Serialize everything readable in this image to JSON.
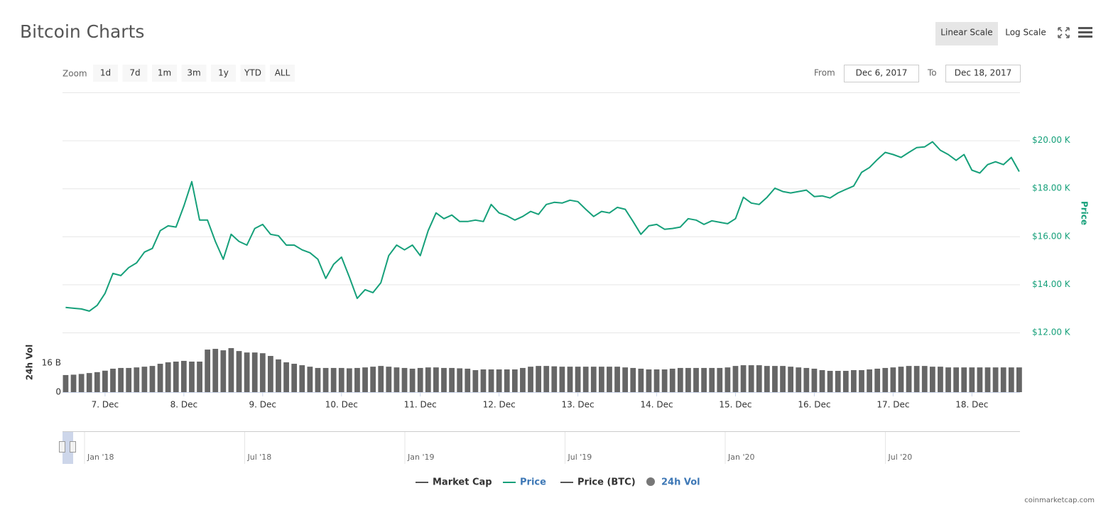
{
  "header": {
    "title": "Bitcoin Charts",
    "scale_buttons": [
      "Linear Scale",
      "Log Scale"
    ]
  },
  "zoom": {
    "label": "Zoom",
    "buttons": [
      "1d",
      "7d",
      "1m",
      "3m",
      "1y",
      "YTD",
      "ALL"
    ]
  },
  "range": {
    "from_label": "From",
    "from": "Dec 6, 2017",
    "to_label": "To",
    "to": "Dec 18, 2017"
  },
  "chart_data": [
    {
      "type": "line",
      "y_label": "Price",
      "x": [
        6.5,
        6.6,
        6.7,
        6.8,
        6.9,
        7.0,
        7.1,
        7.2,
        7.3,
        7.4,
        7.5,
        7.6,
        7.7,
        7.8,
        7.9,
        8.0,
        8.1,
        8.2,
        8.3,
        8.4,
        8.5,
        8.6,
        8.7,
        8.8,
        8.9,
        9.0,
        9.1,
        9.2,
        9.3,
        9.4,
        9.5,
        9.6,
        9.7,
        9.8,
        9.9,
        10.0,
        10.1,
        10.2,
        10.3,
        10.4,
        10.5,
        10.6,
        10.7,
        10.8,
        10.9,
        11.0,
        11.1,
        11.2,
        11.3,
        11.4,
        11.5,
        11.6,
        11.7,
        11.8,
        11.9,
        12.0,
        12.1,
        12.2,
        12.3,
        12.4,
        12.5,
        12.6,
        12.7,
        12.8,
        12.9,
        13.0,
        13.1,
        13.2,
        13.3,
        13.4,
        13.5,
        13.6,
        13.7,
        13.8,
        13.9,
        14.0,
        14.1,
        14.2,
        14.3,
        14.4,
        14.5,
        14.6,
        14.7,
        14.8,
        14.9,
        15.0,
        15.1,
        15.2,
        15.3,
        15.4,
        15.5,
        15.6,
        15.7,
        15.8,
        15.9,
        16.0,
        16.1,
        16.2,
        16.3,
        16.4,
        16.5,
        16.6,
        16.7,
        16.8,
        16.9,
        17.0,
        17.1,
        17.2,
        17.3,
        17.4,
        17.5,
        17.6,
        17.7,
        17.8,
        17.9,
        18.0,
        18.1,
        18.2,
        18.3,
        18.4,
        18.5,
        18.6
      ],
      "xlim": [
        6.46,
        18.61
      ],
      "ylim": [
        12000,
        22000
      ],
      "yticks": [
        {
          "value": 12000,
          "label": "$12.00 K"
        },
        {
          "value": 14000,
          "label": "$14.00 K"
        },
        {
          "value": 16000,
          "label": "$16.00 K"
        },
        {
          "value": 18000,
          "label": "$18.00 K"
        },
        {
          "value": 20000,
          "label": "$20.00 K"
        }
      ],
      "grid": true,
      "series": [
        {
          "name": "Price",
          "color": "#16a07a",
          "values": [
            13040,
            13010,
            12980,
            12890,
            13130,
            13630,
            14460,
            14370,
            14700,
            14900,
            15350,
            15500,
            16240,
            16440,
            16390,
            17270,
            18280,
            16680,
            16680,
            15790,
            15050,
            16090,
            15790,
            15640,
            16330,
            16500,
            16090,
            16030,
            15640,
            15640,
            15440,
            15320,
            15050,
            14250,
            14840,
            15140,
            14310,
            13420,
            13780,
            13660,
            14070,
            15200,
            15640,
            15440,
            15640,
            15200,
            16240,
            16980,
            16740,
            16890,
            16620,
            16620,
            16680,
            16620,
            17330,
            16980,
            16860,
            16680,
            16830,
            17040,
            16920,
            17330,
            17420,
            17390,
            17510,
            17450,
            17130,
            16830,
            17040,
            16980,
            17210,
            17130,
            16620,
            16090,
            16440,
            16500,
            16300,
            16330,
            16390,
            16740,
            16680,
            16500,
            16650,
            16590,
            16530,
            16740,
            17630,
            17390,
            17330,
            17630,
            18010,
            17870,
            17810,
            17870,
            17930,
            17660,
            17690,
            17600,
            17810,
            17960,
            18100,
            18670,
            18870,
            19200,
            19500,
            19410,
            19290,
            19500,
            19700,
            19730,
            19940,
            19590,
            19410,
            19170,
            19410,
            18760,
            18640,
            18990,
            19110,
            18990,
            19290,
            18700
          ]
        }
      ]
    },
    {
      "type": "bar",
      "y_label": "24h Vol",
      "color": "#666666",
      "x": [
        6.5,
        6.6,
        6.7,
        6.8,
        6.9,
        7.0,
        7.1,
        7.2,
        7.3,
        7.4,
        7.5,
        7.6,
        7.7,
        7.8,
        7.9,
        8.0,
        8.1,
        8.2,
        8.3,
        8.4,
        8.5,
        8.6,
        8.7,
        8.8,
        8.9,
        9.0,
        9.1,
        9.2,
        9.3,
        9.4,
        9.5,
        9.6,
        9.7,
        9.8,
        9.9,
        10.0,
        10.1,
        10.2,
        10.3,
        10.4,
        10.5,
        10.6,
        10.7,
        10.8,
        10.9,
        11.0,
        11.1,
        11.2,
        11.3,
        11.4,
        11.5,
        11.6,
        11.7,
        11.8,
        11.9,
        12.0,
        12.1,
        12.2,
        12.3,
        12.4,
        12.5,
        12.6,
        12.7,
        12.8,
        12.9,
        13.0,
        13.1,
        13.2,
        13.3,
        13.4,
        13.5,
        13.6,
        13.7,
        13.8,
        13.9,
        14.0,
        14.1,
        14.2,
        14.3,
        14.4,
        14.5,
        14.6,
        14.7,
        14.8,
        14.9,
        15.0,
        15.1,
        15.2,
        15.3,
        15.4,
        15.5,
        15.6,
        15.7,
        15.8,
        15.9,
        16.0,
        16.1,
        16.2,
        16.3,
        16.4,
        16.5,
        16.6,
        16.7,
        16.8,
        16.9,
        17.0,
        17.1,
        17.2,
        17.3,
        17.4,
        17.5,
        17.6,
        17.7,
        17.8,
        17.9,
        18.0,
        18.1,
        18.2,
        18.3,
        18.4,
        18.5,
        18.6
      ],
      "xlim": [
        6.46,
        18.61
      ],
      "xticks": [
        {
          "value": 7,
          "label": "7. Dec"
        },
        {
          "value": 8,
          "label": "8. Dec"
        },
        {
          "value": 9,
          "label": "9. Dec"
        },
        {
          "value": 10,
          "label": "10. Dec"
        },
        {
          "value": 11,
          "label": "11. Dec"
        },
        {
          "value": 12,
          "label": "12. Dec"
        },
        {
          "value": 13,
          "label": "13. Dec"
        },
        {
          "value": 14,
          "label": "14. Dec"
        },
        {
          "value": 15,
          "label": "15. Dec"
        },
        {
          "value": 16,
          "label": "16. Dec"
        },
        {
          "value": 17,
          "label": "17. Dec"
        },
        {
          "value": 18,
          "label": "18. Dec"
        }
      ],
      "ylim": [
        0,
        32.8
      ],
      "yticks": [
        0,
        {
          "value": 16,
          "label": "16 B"
        }
      ],
      "values": [
        9.4,
        9.6,
        10.0,
        10.5,
        11.0,
        11.8,
        12.9,
        13.3,
        13.3,
        13.6,
        14.0,
        14.4,
        15.6,
        16.4,
        16.8,
        17.2,
        16.8,
        16.8,
        23.4,
        23.8,
        23.0,
        24.2,
        22.6,
        21.8,
        21.8,
        21.4,
        19.9,
        18.0,
        16.4,
        15.6,
        14.8,
        14.0,
        13.3,
        13.3,
        13.3,
        13.3,
        13.1,
        13.3,
        13.6,
        14.0,
        14.4,
        14.0,
        13.6,
        13.3,
        12.9,
        13.3,
        13.6,
        13.6,
        13.3,
        13.3,
        13.1,
        12.9,
        12.1,
        12.5,
        12.5,
        12.5,
        12.5,
        12.5,
        13.3,
        14.0,
        14.4,
        14.4,
        14.2,
        14.0,
        14.0,
        14.0,
        14.0,
        14.0,
        14.0,
        14.0,
        14.0,
        13.6,
        13.3,
        12.9,
        12.5,
        12.5,
        12.5,
        12.9,
        13.3,
        13.3,
        13.3,
        13.3,
        13.3,
        13.3,
        13.6,
        14.4,
        14.8,
        14.8,
        14.8,
        14.4,
        14.4,
        14.4,
        14.0,
        13.6,
        13.3,
        12.9,
        12.1,
        11.7,
        11.7,
        11.7,
        12.1,
        12.1,
        12.5,
        12.9,
        13.3,
        13.6,
        14.0,
        14.4,
        14.4,
        14.4,
        14.0,
        14.0,
        13.6,
        13.6,
        13.6,
        13.6,
        13.6,
        13.6,
        13.6,
        13.6,
        13.6,
        13.6
      ]
    }
  ],
  "navigator": {
    "labels": [
      "Jan '18",
      "Jul '18",
      "Jan '19",
      "Jul '19",
      "Jan '20",
      "Jul '20"
    ]
  },
  "legend": {
    "items": [
      {
        "name": "Market Cap",
        "symbol": "line",
        "color": "#555555"
      },
      {
        "name": "Price",
        "symbol": "line",
        "color": "#16a07a"
      },
      {
        "name": "Price (BTC)",
        "symbol": "line",
        "color": "#555555"
      },
      {
        "name": "24h Vol",
        "symbol": "circle",
        "color": "#777777"
      }
    ]
  },
  "credit": "coinmarketcap.com"
}
